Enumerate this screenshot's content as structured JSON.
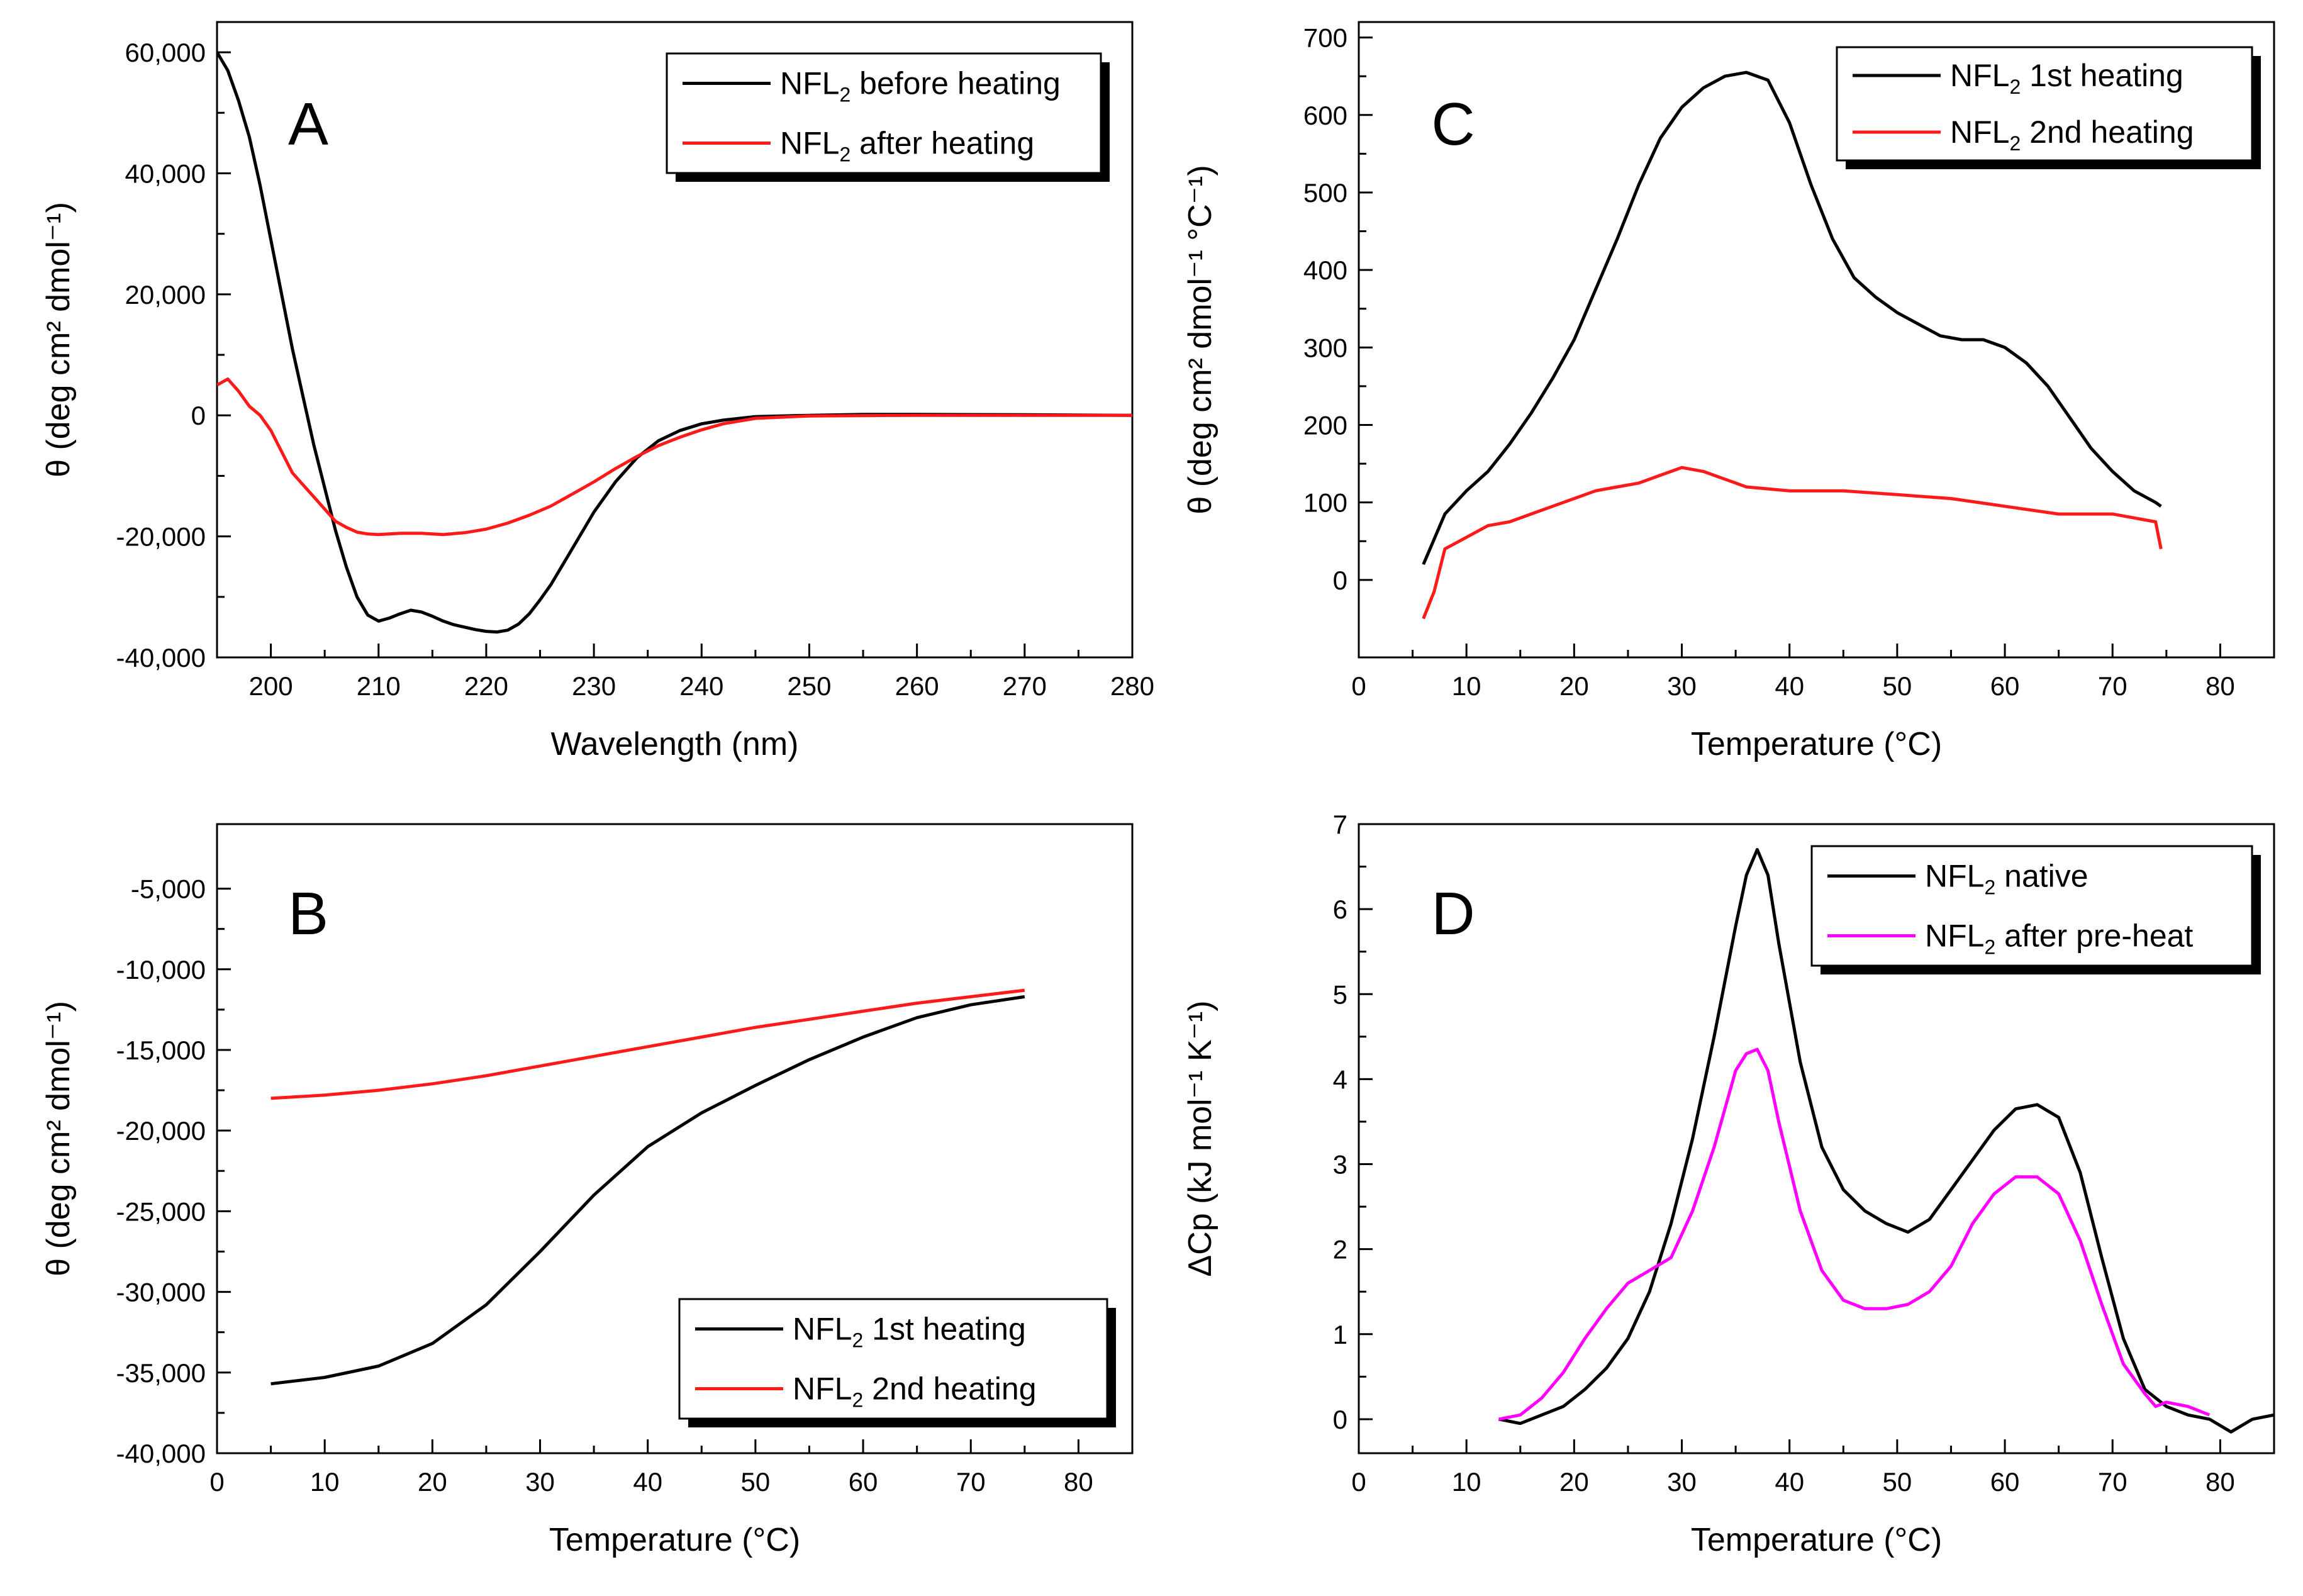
{
  "colors": {
    "black": "#000000",
    "red": "#ff1a1a",
    "magenta": "#ff00ff",
    "background": "#ffffff"
  },
  "chart_data": [
    {
      "panel": "A",
      "type": "line",
      "xlabel": "Wavelength (nm)",
      "ylabel": "θ (deg cm² dmol⁻¹)",
      "xlim": [
        195,
        280
      ],
      "ylim": [
        -40000,
        65000
      ],
      "xticks": [
        200,
        210,
        220,
        230,
        240,
        250,
        260,
        270,
        280
      ],
      "yticks": [
        -40000,
        -20000,
        0,
        20000,
        40000,
        60000
      ],
      "ytick_labels": [
        "-40,000",
        "-20,000",
        "0",
        "20,000",
        "40,000",
        "60,000"
      ],
      "legend": "top-right",
      "grid": false,
      "series": [
        {
          "name": "NFL₂ before heating",
          "legend_main": "NFL",
          "legend_sub": "2",
          "legend_rest": "before heating",
          "color": "#000000",
          "x": [
            195,
            196,
            197,
            198,
            199,
            200,
            201,
            202,
            203,
            204,
            205,
            206,
            207,
            208,
            209,
            210,
            211,
            212,
            213,
            214,
            215,
            216,
            217,
            218,
            219,
            220,
            221,
            222,
            223,
            224,
            225,
            226,
            228,
            230,
            232,
            234,
            236,
            238,
            240,
            242,
            245,
            250,
            255,
            260,
            270,
            280
          ],
          "y": [
            60000,
            57000,
            52000,
            46000,
            38000,
            29000,
            20000,
            11000,
            3000,
            -5000,
            -12000,
            -19000,
            -25000,
            -30000,
            -33000,
            -34000,
            -33500,
            -32800,
            -32200,
            -32500,
            -33200,
            -34000,
            -34600,
            -35000,
            -35400,
            -35700,
            -35800,
            -35500,
            -34500,
            -32800,
            -30500,
            -28000,
            -22000,
            -16000,
            -11000,
            -7000,
            -4200,
            -2500,
            -1400,
            -800,
            -200,
            0,
            150,
            150,
            100,
            0
          ]
        },
        {
          "name": "NFL₂ after heating",
          "legend_main": "NFL",
          "legend_sub": "2",
          "legend_rest": "after heating",
          "color": "#ff1a1a",
          "x": [
            195,
            196,
            197,
            198,
            199,
            200,
            201,
            202,
            203,
            204,
            205,
            206,
            207,
            208,
            209,
            210,
            212,
            214,
            216,
            218,
            220,
            222,
            224,
            226,
            228,
            230,
            232,
            234,
            236,
            238,
            240,
            242,
            245,
            250,
            260,
            270,
            280
          ],
          "y": [
            5000,
            6000,
            4000,
            1500,
            0,
            -2500,
            -6000,
            -9500,
            -11500,
            -13500,
            -15500,
            -17500,
            -18500,
            -19300,
            -19600,
            -19700,
            -19500,
            -19500,
            -19700,
            -19400,
            -18800,
            -17800,
            -16500,
            -15000,
            -13000,
            -11000,
            -8800,
            -6800,
            -5000,
            -3600,
            -2400,
            -1400,
            -500,
            -100,
            0,
            0,
            0
          ]
        }
      ]
    },
    {
      "panel": "B",
      "type": "line",
      "xlabel": "Temperature (°C)",
      "ylabel": "θ (deg cm² dmol⁻¹)",
      "xlim": [
        0,
        85
      ],
      "ylim": [
        -40000,
        -1000
      ],
      "xticks": [
        0,
        10,
        20,
        30,
        40,
        50,
        60,
        70,
        80
      ],
      "yticks": [
        -40000,
        -35000,
        -30000,
        -25000,
        -20000,
        -15000,
        -10000,
        -5000
      ],
      "ytick_labels": [
        "-40,000",
        "-35,000",
        "-30,000",
        "-25,000",
        "-20,000",
        "-15,000",
        "-10,000",
        "-5,000"
      ],
      "legend": "bottom-right",
      "grid": false,
      "series": [
        {
          "name": "NFL₂ 1st heating",
          "legend_main": "NFL",
          "legend_sub": "2",
          "legend_rest": "1st heating",
          "color": "#000000",
          "x": [
            5,
            10,
            15,
            20,
            25,
            30,
            35,
            40,
            45,
            50,
            55,
            60,
            65,
            70,
            75
          ],
          "y": [
            -35700,
            -35300,
            -34600,
            -33200,
            -30800,
            -27500,
            -24000,
            -21000,
            -18900,
            -17200,
            -15600,
            -14200,
            -13000,
            -12200,
            -11700
          ]
        },
        {
          "name": "NFL₂ 2nd heating",
          "legend_main": "NFL",
          "legend_sub": "2",
          "legend_rest": "2nd heating",
          "color": "#ff1a1a",
          "x": [
            5,
            10,
            15,
            20,
            25,
            30,
            35,
            40,
            45,
            50,
            55,
            60,
            65,
            70,
            75
          ],
          "y": [
            -18000,
            -17800,
            -17500,
            -17100,
            -16600,
            -16000,
            -15400,
            -14800,
            -14200,
            -13600,
            -13100,
            -12600,
            -12100,
            -11700,
            -11300
          ]
        }
      ]
    },
    {
      "panel": "C",
      "type": "line",
      "xlabel": "Temperature (°C)",
      "ylabel": "θ (deg cm² dmol⁻¹ °C⁻¹)",
      "xlim": [
        0,
        85
      ],
      "ylim": [
        -100,
        720
      ],
      "xticks": [
        0,
        10,
        20,
        30,
        40,
        50,
        60,
        70,
        80
      ],
      "yticks": [
        0,
        100,
        200,
        300,
        400,
        500,
        600,
        700
      ],
      "ytick_labels": [
        "0",
        "100",
        "200",
        "300",
        "400",
        "500",
        "600",
        "700"
      ],
      "legend": "top-right",
      "grid": false,
      "series": [
        {
          "name": "NFL₂ 1st heating",
          "legend_main": "NFL",
          "legend_sub": "2",
          "legend_rest": "1st heating",
          "color": "#000000",
          "x": [
            6,
            8,
            10,
            12,
            14,
            16,
            18,
            20,
            22,
            24,
            26,
            28,
            30,
            32,
            34,
            36,
            38,
            40,
            42,
            44,
            46,
            48,
            50,
            52,
            54,
            56,
            58,
            60,
            62,
            64,
            66,
            68,
            70,
            72,
            74,
            74.5
          ],
          "y": [
            20,
            85,
            115,
            140,
            175,
            215,
            260,
            310,
            375,
            440,
            510,
            570,
            610,
            635,
            650,
            655,
            645,
            590,
            510,
            440,
            390,
            365,
            345,
            330,
            315,
            310,
            310,
            300,
            280,
            250,
            210,
            170,
            140,
            115,
            100,
            95
          ]
        },
        {
          "name": "NFL₂ 2nd heating",
          "legend_main": "NFL",
          "legend_sub": "2",
          "legend_rest": "2nd heating",
          "color": "#ff1a1a",
          "x": [
            6,
            7,
            8,
            10,
            12,
            14,
            16,
            18,
            20,
            22,
            24,
            26,
            28,
            30,
            32,
            34,
            36,
            40,
            45,
            50,
            55,
            60,
            65,
            70,
            74,
            74.5
          ],
          "y": [
            -50,
            -15,
            40,
            55,
            70,
            75,
            85,
            95,
            105,
            115,
            120,
            125,
            135,
            145,
            140,
            130,
            120,
            115,
            115,
            110,
            105,
            95,
            85,
            85,
            75,
            40
          ]
        }
      ]
    },
    {
      "panel": "D",
      "type": "line",
      "xlabel": "Temperature (°C)",
      "ylabel": "ΔCp (kJ mol⁻¹ K⁻¹)",
      "xlim": [
        0,
        85
      ],
      "ylim": [
        -0.4,
        7
      ],
      "xticks": [
        0,
        10,
        20,
        30,
        40,
        50,
        60,
        70,
        80
      ],
      "yticks": [
        0,
        1,
        2,
        3,
        4,
        5,
        6,
        7
      ],
      "ytick_labels": [
        "0",
        "1",
        "2",
        "3",
        "4",
        "5",
        "6",
        "7"
      ],
      "legend": "top-right",
      "grid": false,
      "series": [
        {
          "name": "NFL₂ native",
          "legend_main": "NFL",
          "legend_sub": "2",
          "legend_rest": "native",
          "color": "#000000",
          "x": [
            13,
            15,
            17,
            19,
            21,
            23,
            25,
            27,
            29,
            31,
            33,
            35,
            36,
            37,
            38,
            39,
            41,
            43,
            45,
            47,
            49,
            51,
            53,
            55,
            57,
            59,
            61,
            63,
            65,
            67,
            69,
            71,
            73,
            75,
            77,
            79,
            81,
            83,
            85
          ],
          "y": [
            0.0,
            -0.05,
            0.05,
            0.15,
            0.35,
            0.6,
            0.95,
            1.5,
            2.3,
            3.3,
            4.5,
            5.8,
            6.4,
            6.7,
            6.4,
            5.6,
            4.2,
            3.2,
            2.7,
            2.45,
            2.3,
            2.2,
            2.35,
            2.7,
            3.05,
            3.4,
            3.65,
            3.7,
            3.55,
            2.9,
            1.9,
            0.95,
            0.35,
            0.15,
            0.05,
            0.0,
            -0.15,
            0.0,
            0.05
          ]
        },
        {
          "name": "NFL₂ after pre-heat",
          "legend_main": "NFL",
          "legend_sub": "2",
          "legend_rest": "after pre-heat",
          "color": "#ff00ff",
          "x": [
            13,
            15,
            17,
            19,
            21,
            23,
            25,
            27,
            29,
            31,
            33,
            35,
            36,
            37,
            38,
            39,
            41,
            43,
            45,
            47,
            49,
            51,
            53,
            55,
            57,
            59,
            61,
            63,
            65,
            67,
            69,
            71,
            73,
            74,
            75,
            77,
            79
          ],
          "y": [
            0.0,
            0.05,
            0.25,
            0.55,
            0.95,
            1.3,
            1.6,
            1.75,
            1.9,
            2.45,
            3.2,
            4.1,
            4.3,
            4.35,
            4.1,
            3.5,
            2.45,
            1.75,
            1.4,
            1.3,
            1.3,
            1.35,
            1.5,
            1.8,
            2.3,
            2.65,
            2.85,
            2.85,
            2.65,
            2.1,
            1.35,
            0.65,
            0.3,
            0.15,
            0.2,
            0.15,
            0.05
          ]
        }
      ]
    }
  ]
}
